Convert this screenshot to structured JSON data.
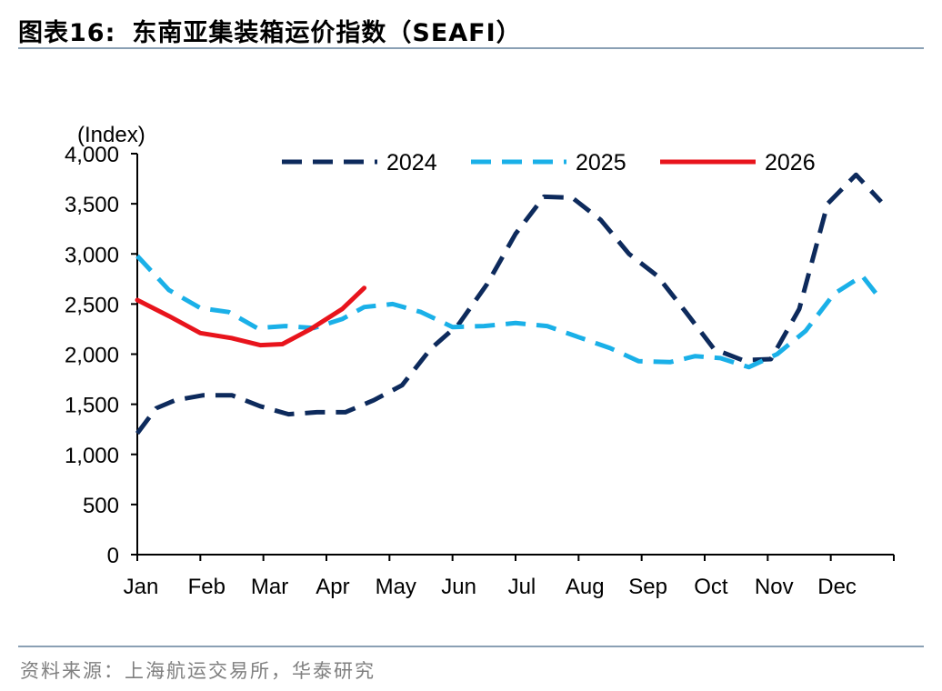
{
  "figure": {
    "title_number": "图表16:",
    "title_text": "东南亚集装箱运价指数（SEAFI）",
    "source": "资料来源：上海航运交易所，华泰研究"
  },
  "chart_data": {
    "type": "line",
    "ylabel": "(Index)",
    "ylim": [
      0,
      4000
    ],
    "yticks": [
      0,
      500,
      1000,
      1500,
      2000,
      2500,
      3000,
      3500,
      4000
    ],
    "ytick_labels": [
      "0",
      "500",
      "1,000",
      "1,500",
      "2,000",
      "2,500",
      "3,000",
      "3,500",
      "4,000"
    ],
    "xlim": [
      0,
      12
    ],
    "x_units": "months from Jan",
    "months": [
      "Jan",
      "Feb",
      "Mar",
      "Apr",
      "May",
      "Jun",
      "Jul",
      "Aug",
      "Sep",
      "Oct",
      "Nov",
      "Dec"
    ],
    "legend_position": "top",
    "series": [
      {
        "name": "2024",
        "color": "#0d2a5c",
        "style": "dashed",
        "x": [
          0.0,
          0.3,
          0.6,
          1.05,
          1.5,
          1.95,
          2.4,
          2.85,
          3.3,
          3.75,
          4.2,
          4.65,
          5.1,
          5.55,
          6.0,
          6.45,
          6.9,
          7.35,
          7.8,
          8.25,
          8.7,
          9.15,
          9.6,
          10.05,
          10.5,
          10.95,
          11.4,
          11.8
        ],
        "y": [
          1210,
          1460,
          1540,
          1590,
          1590,
          1480,
          1400,
          1420,
          1420,
          1540,
          1690,
          2050,
          2300,
          2700,
          3200,
          3570,
          3560,
          3340,
          3000,
          2780,
          2420,
          2050,
          1940,
          1950,
          2450,
          3500,
          3790,
          3520
        ]
      },
      {
        "name": "2025",
        "color": "#1ab0e8",
        "style": "dashed",
        "x": [
          0.0,
          0.5,
          1.0,
          1.45,
          1.9,
          2.35,
          2.8,
          3.25,
          3.6,
          4.05,
          4.5,
          5.0,
          5.5,
          6.0,
          6.5,
          7.0,
          7.5,
          7.95,
          8.45,
          8.85,
          9.25,
          9.7,
          10.15,
          10.6,
          11.05,
          11.5,
          11.8
        ],
        "y": [
          2980,
          2640,
          2460,
          2420,
          2260,
          2280,
          2260,
          2350,
          2470,
          2500,
          2420,
          2270,
          2280,
          2310,
          2280,
          2170,
          2060,
          1930,
          1920,
          1980,
          1960,
          1870,
          2000,
          2230,
          2600,
          2780,
          2540
        ]
      },
      {
        "name": "2026",
        "color": "#e8141c",
        "style": "solid",
        "x": [
          0.0,
          0.5,
          1.0,
          1.5,
          1.95,
          2.3,
          2.75,
          3.25,
          3.6
        ],
        "y": [
          2540,
          2380,
          2210,
          2160,
          2090,
          2100,
          2250,
          2450,
          2660
        ]
      }
    ]
  }
}
